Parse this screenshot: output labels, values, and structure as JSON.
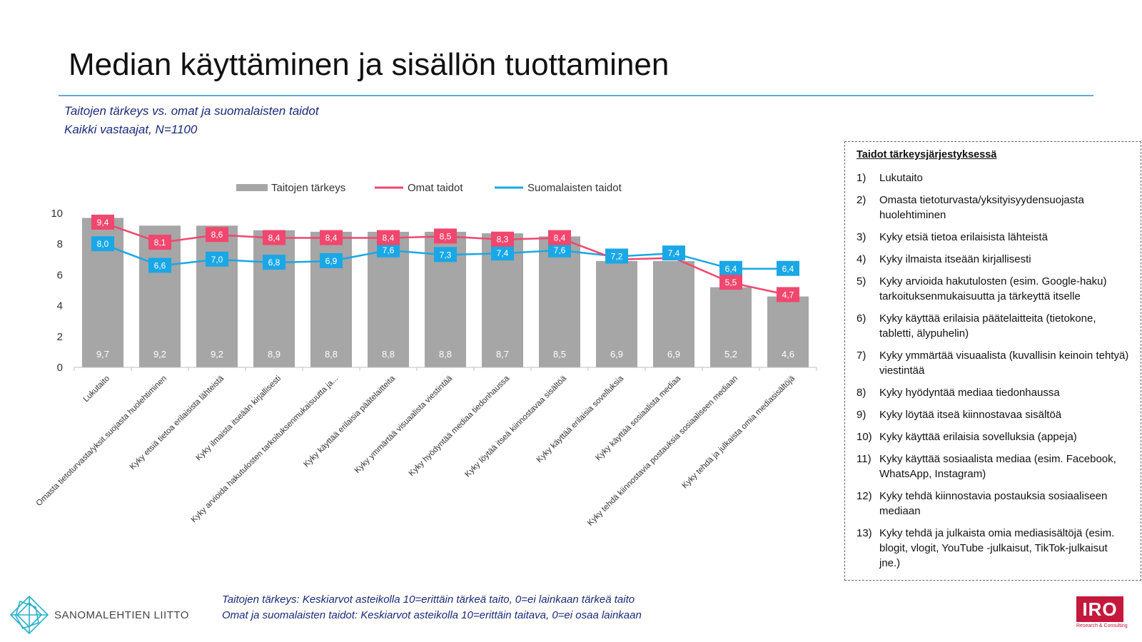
{
  "header": {
    "title": "Median käyttäminen ja sisällön tuottaminen",
    "subtitle1": "Taitojen tärkeys vs. omat ja suomalaisten taidot",
    "subtitle2": "Kaikki vastaajat, N=1100"
  },
  "chart_data": {
    "type": "bar",
    "categories": [
      "Lukutaito",
      "Omasta tietoturvasta/yksit.suojasta huolehtiminen",
      "Kyky etsiä tietoa erilaisista lähteistä",
      "Kyky ilmaista itseään kirjallisesti",
      "Kyky arvioida hakutulosten tarkoituksenmukaisuutta ja...",
      "Kyky käyttää erilaisia päätelaitteita",
      "Kyky ymmärtää visuaalista viestintää",
      "Kyky hyödyntää mediaa tiedonhaussa",
      "Kyky löytää itseä kiinnostavaa sisältöä",
      "Kyky käyttää erilaisia sovelluksia",
      "Kyky käyttää sosiaalista mediaa",
      "Kyky tehdä kiinnostavia postauksia sosiaaliseen mediaan",
      "Kyky tehdä ja julkaista omia mediasisältöjä"
    ],
    "series": [
      {
        "name": "Taitojen tärkeys",
        "kind": "bar",
        "color": "#a6a6a6",
        "values": [
          9.7,
          9.2,
          9.2,
          8.9,
          8.8,
          8.8,
          8.8,
          8.7,
          8.5,
          6.9,
          6.9,
          5.2,
          4.6
        ],
        "labels": [
          "9,7",
          "9,2",
          "9,2",
          "8,9",
          "8,8",
          "8,8",
          "8,8",
          "8,7",
          "8,5",
          "6,9",
          "6,9",
          "5,2",
          "4,6"
        ]
      },
      {
        "name": "Omat taidot",
        "kind": "line",
        "color": "#f0476e",
        "values": [
          9.4,
          8.1,
          8.6,
          8.4,
          8.4,
          8.4,
          8.5,
          8.3,
          8.4,
          7.0,
          7.1,
          5.5,
          4.7
        ],
        "labels": [
          "9,4",
          "8,1",
          "8,6",
          "8,4",
          "8,4",
          "8,4",
          "8,5",
          "8,3",
          "8,4",
          "",
          "",
          "5,5",
          "4,7"
        ]
      },
      {
        "name": "Suomalaisten taidot",
        "kind": "line",
        "color": "#1aa7e6",
        "values": [
          8.0,
          6.6,
          7.0,
          6.8,
          6.9,
          7.6,
          7.3,
          7.4,
          7.6,
          7.2,
          7.4,
          6.4,
          6.4
        ],
        "labels": [
          "8,0",
          "6,6",
          "7,0",
          "6,8",
          "6,9",
          "7,6",
          "7,3",
          "7,4",
          "7,6",
          "7,2",
          "7,4",
          "6,4",
          "6,4"
        ]
      }
    ],
    "ylim": [
      0,
      10
    ],
    "yticks": [
      "0",
      "2",
      "4",
      "6",
      "8",
      "10"
    ],
    "legend_position": "top",
    "grid": false
  },
  "sidebar": {
    "heading": "Taidot tärkeysjärjestyksessä",
    "items": [
      {
        "num": "1)",
        "text": "Lukutaito"
      },
      {
        "num": "2)",
        "text": "Omasta tietoturvasta/yksityisyydensuojasta huolehtiminen"
      },
      {
        "num": "3)",
        "text": "Kyky etsiä tietoa erilaisista lähteistä"
      },
      {
        "num": "4)",
        "text": "Kyky ilmaista itseään kirjallisesti"
      },
      {
        "num": "5)",
        "text": "Kyky arvioida hakutulosten (esim. Google-haku) tarkoituksenmukaisuutta ja tärkeyttä itselle"
      },
      {
        "num": "6)",
        "text": "Kyky käyttää erilaisia päätelaitteita (tietokone, tabletti, älypuhelin)"
      },
      {
        "num": "7)",
        "text": "Kyky ymmärtää visuaalista (kuvallisin keinoin tehtyä) viestintää"
      },
      {
        "num": "8)",
        "text": "Kyky hyödyntää mediaa tiedonhaussa"
      },
      {
        "num": "9)",
        "text": "Kyky löytää itseä kiinnostavaa sisältöä"
      },
      {
        "num": "10)",
        "text": "Kyky käyttää erilaisia sovelluksia (appeja)"
      },
      {
        "num": "11)",
        "text": "Kyky käyttää sosiaalista mediaa (esim. Facebook, WhatsApp, Instagram)"
      },
      {
        "num": "12)",
        "text": "Kyky tehdä kiinnostavia postauksia sosiaaliseen mediaan"
      },
      {
        "num": "13)",
        "text": "Kyky tehdä ja julkaista omia mediasisältöjä (esim. blogit, vlogit, YouTube -julkaisut, TikTok-julkaisut jne.)"
      }
    ]
  },
  "footer": {
    "note1": "Taitojen tärkeys: Keskiarvot asteikolla 10=erittäin tärkeä taito, 0=ei lainkaan tärkeä taito",
    "note2": "Omat ja suomalaisten taidot: Keskiarvot asteikolla 10=erittäin taitava, 0=ei osaa lainkaan",
    "logo_left_text": "SANOMALEHTIEN LIITTO",
    "logo_right_text": "IRO",
    "logo_right_sub": "Research & Consulting"
  }
}
